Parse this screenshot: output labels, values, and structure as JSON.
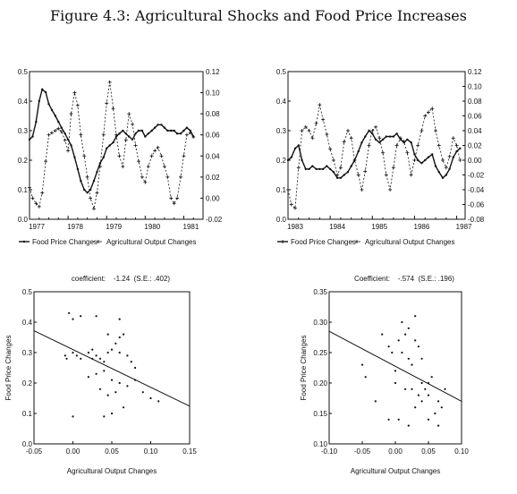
{
  "page": {
    "title": "Figure 4.3: Agricultural Shocks and Food Price Increases"
  },
  "chart_data": [
    {
      "type": "line",
      "x_tick_labels": [
        "1977",
        "1978",
        "1979",
        "1980",
        "1981"
      ],
      "xlim": [
        1977,
        1981.5
      ],
      "ylim": [
        0,
        0.5
      ],
      "y2lim": [
        -0.02,
        0.12
      ],
      "y_tick_labels": [
        "0.0",
        "0.1",
        "0.2",
        "0.3",
        "0.4",
        "0.5"
      ],
      "y2_tick_labels": [
        "-0.02",
        "0.00",
        "0.02",
        "0.04",
        "0.06",
        "0.08",
        "0.10",
        "0.12"
      ],
      "legend": [
        {
          "label": "Food Price Changes",
          "marker": "line"
        },
        {
          "label": "Agricultural Output Changes",
          "marker": "plus"
        }
      ],
      "legend_position": "bottom",
      "series": [
        {
          "name": "Food Price Changes",
          "axis": "left",
          "x": [
            1977.0,
            1977.08,
            1977.17,
            1977.25,
            1977.33,
            1977.42,
            1977.5,
            1977.58,
            1977.67,
            1977.75,
            1977.83,
            1977.92,
            1978.0,
            1978.08,
            1978.17,
            1978.25,
            1978.33,
            1978.42,
            1978.5,
            1978.58,
            1978.67,
            1978.75,
            1978.83,
            1978.92,
            1979.0,
            1979.08,
            1979.17,
            1979.25,
            1979.33,
            1979.42,
            1979.5,
            1979.58,
            1979.67,
            1979.75,
            1979.83,
            1979.92,
            1980.0,
            1980.08,
            1980.17,
            1980.25,
            1980.33,
            1980.42,
            1980.5,
            1980.58,
            1980.67,
            1980.75,
            1980.83,
            1980.92,
            1981.0,
            1981.08,
            1981.17,
            1981.25
          ],
          "y": [
            0.27,
            0.28,
            0.33,
            0.4,
            0.44,
            0.43,
            0.39,
            0.37,
            0.35,
            0.33,
            0.31,
            0.29,
            0.27,
            0.25,
            0.21,
            0.17,
            0.13,
            0.1,
            0.09,
            0.1,
            0.13,
            0.16,
            0.19,
            0.21,
            0.24,
            0.25,
            0.26,
            0.28,
            0.29,
            0.3,
            0.29,
            0.28,
            0.27,
            0.29,
            0.3,
            0.3,
            0.28,
            0.29,
            0.3,
            0.31,
            0.32,
            0.32,
            0.31,
            0.3,
            0.3,
            0.3,
            0.29,
            0.29,
            0.3,
            0.31,
            0.3,
            0.28
          ]
        },
        {
          "name": "Agricultural Output Changes",
          "axis": "right",
          "x": [
            1977.0,
            1977.08,
            1977.17,
            1977.25,
            1977.33,
            1977.42,
            1977.5,
            1977.58,
            1977.67,
            1977.75,
            1977.83,
            1977.92,
            1978.0,
            1978.08,
            1978.17,
            1978.25,
            1978.33,
            1978.42,
            1978.5,
            1978.58,
            1978.67,
            1978.75,
            1978.83,
            1978.92,
            1979.0,
            1979.08,
            1979.17,
            1979.25,
            1979.33,
            1979.42,
            1979.5,
            1979.58,
            1979.67,
            1979.75,
            1979.83,
            1979.92,
            1980.0,
            1980.08,
            1980.17,
            1980.25,
            1980.33,
            1980.42,
            1980.5,
            1980.58,
            1980.67,
            1980.75,
            1980.83,
            1980.92,
            1981.0,
            1981.08,
            1981.17,
            1981.25
          ],
          "y": [
            0.01,
            0.0,
            -0.005,
            -0.008,
            0.005,
            0.035,
            0.06,
            0.062,
            0.064,
            0.066,
            0.063,
            0.055,
            0.045,
            0.08,
            0.1,
            0.088,
            0.06,
            0.04,
            0.02,
            0.0,
            -0.01,
            0.005,
            0.03,
            0.06,
            0.09,
            0.11,
            0.085,
            0.06,
            0.04,
            0.03,
            0.055,
            0.08,
            0.07,
            0.05,
            0.035,
            0.02,
            0.015,
            0.03,
            0.04,
            0.045,
            0.048,
            0.04,
            0.03,
            0.02,
            0.0,
            -0.005,
            0.0,
            0.02,
            0.04,
            0.06,
            0.062,
            0.058
          ]
        }
      ]
    },
    {
      "type": "line",
      "x_tick_labels": [
        "1983",
        "1984",
        "1985",
        "1986",
        "1987"
      ],
      "xlim": [
        1983,
        1987.2
      ],
      "ylim": [
        0,
        0.5
      ],
      "y2lim": [
        -0.08,
        0.12
      ],
      "y_tick_labels": [
        "0.0",
        "0.1",
        "0.2",
        "0.3",
        "0.4",
        "0.5"
      ],
      "y2_tick_labels": [
        "-0.08",
        "-0.06",
        "-0.04",
        "-0.02",
        "0.00",
        "0.02",
        "0.04",
        "0.06",
        "0.08",
        "0.10",
        "0.12"
      ],
      "legend": [
        {
          "label": "Food Price Changes",
          "marker": "plus"
        },
        {
          "label": "Agricultural Output Changes",
          "marker": "plus"
        }
      ],
      "legend_position": "bottom",
      "series": [
        {
          "name": "Food Price Changes",
          "axis": "left",
          "x": [
            1983.0,
            1983.08,
            1983.17,
            1983.25,
            1983.33,
            1983.42,
            1983.5,
            1983.58,
            1983.67,
            1983.75,
            1983.83,
            1983.92,
            1984.0,
            1984.08,
            1984.17,
            1984.25,
            1984.33,
            1984.42,
            1984.5,
            1984.58,
            1984.67,
            1984.75,
            1984.83,
            1984.92,
            1985.0,
            1985.08,
            1985.17,
            1985.25,
            1985.33,
            1985.42,
            1985.5,
            1985.58,
            1985.67,
            1985.75,
            1985.83,
            1985.92,
            1986.0,
            1986.08,
            1986.17,
            1986.25,
            1986.33,
            1986.42,
            1986.5,
            1986.58,
            1986.67,
            1986.75,
            1986.83,
            1986.92,
            1987.0,
            1987.08
          ],
          "y": [
            0.2,
            0.21,
            0.24,
            0.25,
            0.2,
            0.17,
            0.17,
            0.18,
            0.17,
            0.17,
            0.17,
            0.18,
            0.17,
            0.16,
            0.14,
            0.14,
            0.15,
            0.16,
            0.18,
            0.2,
            0.23,
            0.26,
            0.28,
            0.3,
            0.29,
            0.27,
            0.26,
            0.27,
            0.28,
            0.28,
            0.28,
            0.29,
            0.27,
            0.26,
            0.27,
            0.26,
            0.22,
            0.2,
            0.19,
            0.2,
            0.21,
            0.22,
            0.18,
            0.16,
            0.14,
            0.15,
            0.17,
            0.21,
            0.23,
            0.24
          ]
        },
        {
          "name": "Agricultural Output Changes",
          "axis": "right",
          "x": [
            1983.0,
            1983.08,
            1983.17,
            1983.25,
            1983.33,
            1983.42,
            1983.5,
            1983.58,
            1983.67,
            1983.75,
            1983.83,
            1983.92,
            1984.0,
            1984.08,
            1984.17,
            1984.25,
            1984.33,
            1984.42,
            1984.5,
            1984.58,
            1984.67,
            1984.75,
            1984.83,
            1984.92,
            1985.0,
            1985.08,
            1985.17,
            1985.25,
            1985.33,
            1985.42,
            1985.5,
            1985.58,
            1985.67,
            1985.75,
            1985.83,
            1985.92,
            1986.0,
            1986.08,
            1986.17,
            1986.25,
            1986.33,
            1986.42,
            1986.5,
            1986.58,
            1986.67,
            1986.75,
            1986.83,
            1986.92,
            1987.0,
            1987.08
          ],
          "y": [
            -0.04,
            -0.06,
            -0.065,
            -0.01,
            0.04,
            0.045,
            0.04,
            0.03,
            0.05,
            0.075,
            0.055,
            0.035,
            0.015,
            0.0,
            -0.02,
            -0.01,
            0.025,
            0.04,
            0.03,
            0.0,
            -0.02,
            -0.04,
            -0.015,
            0.02,
            0.04,
            0.045,
            0.03,
            0.01,
            -0.02,
            -0.04,
            -0.01,
            0.02,
            0.03,
            0.025,
            0.01,
            -0.02,
            0.0,
            0.02,
            0.04,
            0.06,
            0.065,
            0.07,
            0.04,
            0.02,
            0.0,
            -0.01,
            0.005,
            0.03,
            0.02,
            0.0
          ]
        }
      ]
    },
    {
      "type": "scatter",
      "subtitle": "coefficient:    -1.24  (S.E.: .402)",
      "xlabel": "Agricultural Output Changes",
      "ylabel": "Food Price Changes",
      "xlim": [
        -0.05,
        0.15
      ],
      "ylim": [
        0,
        0.5
      ],
      "x_tick_labels": [
        "-0.05",
        "0.00",
        "0.05",
        "0.10",
        "0.15"
      ],
      "y_tick_labels": [
        "0.0",
        "0.1",
        "0.2",
        "0.3",
        "0.4",
        "0.5"
      ],
      "points": [
        [
          -0.005,
          0.43
        ],
        [
          0.0,
          0.41
        ],
        [
          0.01,
          0.42
        ],
        [
          0.03,
          0.42
        ],
        [
          0.06,
          0.41
        ],
        [
          -0.01,
          0.29
        ],
        [
          -0.008,
          0.28
        ],
        [
          0.0,
          0.3
        ],
        [
          0.005,
          0.29
        ],
        [
          0.01,
          0.28
        ],
        [
          0.02,
          0.3
        ],
        [
          0.025,
          0.31
        ],
        [
          0.03,
          0.29
        ],
        [
          0.035,
          0.28
        ],
        [
          0.04,
          0.27
        ],
        [
          0.045,
          0.3
        ],
        [
          0.05,
          0.31
        ],
        [
          0.055,
          0.33
        ],
        [
          0.06,
          0.35
        ],
        [
          0.065,
          0.36
        ],
        [
          0.06,
          0.3
        ],
        [
          0.07,
          0.29
        ],
        [
          0.075,
          0.27
        ],
        [
          0.08,
          0.25
        ],
        [
          0.045,
          0.36
        ],
        [
          0.02,
          0.22
        ],
        [
          0.03,
          0.23
        ],
        [
          0.04,
          0.24
        ],
        [
          0.05,
          0.21
        ],
        [
          0.06,
          0.2
        ],
        [
          0.07,
          0.19
        ],
        [
          0.08,
          0.21
        ],
        [
          0.09,
          0.17
        ],
        [
          0.1,
          0.15
        ],
        [
          0.11,
          0.14
        ],
        [
          0.035,
          0.18
        ],
        [
          0.045,
          0.16
        ],
        [
          0.055,
          0.17
        ],
        [
          0.065,
          0.12
        ],
        [
          0.04,
          0.09
        ],
        [
          0.05,
          0.1
        ],
        [
          0.0,
          0.09
        ],
        [
          0.025,
          0.28
        ]
      ],
      "regression_line": {
        "x": [
          -0.05,
          0.15
        ],
        "y": [
          0.372,
          0.124
        ]
      }
    },
    {
      "type": "scatter",
      "subtitle": "Coefficient:    -.574  (S.E.: .196)",
      "xlabel": "Agricultural Output Changes",
      "ylabel": "Food Price Changes",
      "xlim": [
        -0.1,
        0.1
      ],
      "ylim": [
        0.1,
        0.35
      ],
      "x_tick_labels": [
        "-0.10",
        "-0.05",
        "0.00",
        "0.05",
        "0.10"
      ],
      "y_tick_labels": [
        "0.10",
        "0.15",
        "0.20",
        "0.25",
        "0.30",
        "0.35"
      ],
      "points": [
        [
          -0.05,
          0.23
        ],
        [
          -0.045,
          0.21
        ],
        [
          -0.03,
          0.17
        ],
        [
          -0.02,
          0.28
        ],
        [
          -0.01,
          0.26
        ],
        [
          -0.005,
          0.25
        ],
        [
          0.0,
          0.22
        ],
        [
          0.0,
          0.2
        ],
        [
          0.005,
          0.27
        ],
        [
          0.01,
          0.25
        ],
        [
          0.01,
          0.3
        ],
        [
          0.015,
          0.28
        ],
        [
          0.02,
          0.29
        ],
        [
          0.02,
          0.24
        ],
        [
          0.025,
          0.23
        ],
        [
          0.03,
          0.27
        ],
        [
          0.03,
          0.31
        ],
        [
          0.035,
          0.26
        ],
        [
          0.04,
          0.24
        ],
        [
          0.04,
          0.2
        ],
        [
          0.045,
          0.19
        ],
        [
          0.05,
          0.18
        ],
        [
          0.05,
          0.2
        ],
        [
          0.055,
          0.21
        ],
        [
          0.06,
          0.15
        ],
        [
          0.065,
          0.17
        ],
        [
          0.07,
          0.16
        ],
        [
          0.075,
          0.19
        ],
        [
          0.005,
          0.14
        ],
        [
          0.02,
          0.13
        ],
        [
          0.03,
          0.16
        ],
        [
          0.04,
          0.17
        ],
        [
          0.05,
          0.14
        ],
        [
          0.065,
          0.13
        ],
        [
          0.015,
          0.19
        ],
        [
          0.025,
          0.19
        ],
        [
          -0.01,
          0.14
        ],
        [
          0.035,
          0.18
        ]
      ],
      "regression_line": {
        "x": [
          -0.1,
          0.1
        ],
        "y": [
          0.285,
          0.17
        ]
      }
    }
  ]
}
